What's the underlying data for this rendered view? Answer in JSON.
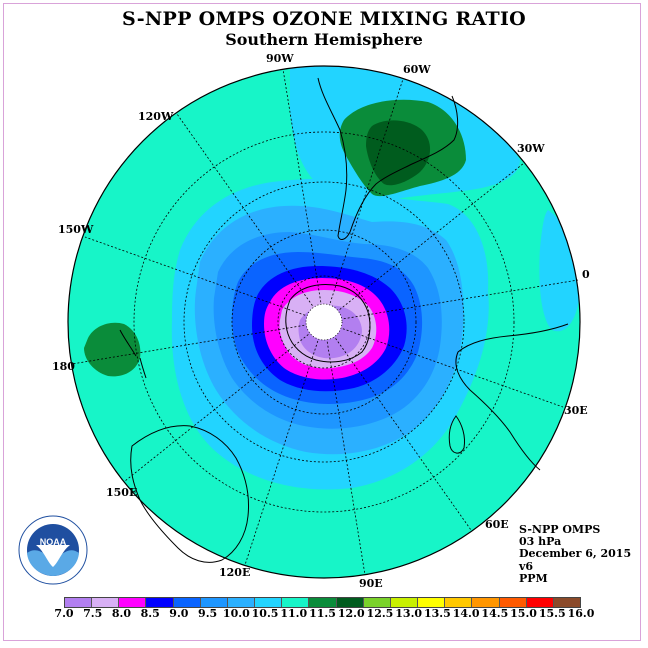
{
  "title": "S-NPP OMPS OZONE MIXING RATIO",
  "subtitle": "Southern Hemisphere",
  "longitude_labels": {
    "l90w": "90W",
    "l60w": "60W",
    "l120w": "120W",
    "l30w": "30W",
    "l150w": "150W",
    "l0": "0",
    "l180": "180",
    "l30e": "30E",
    "l150e": "150E",
    "l60e": "60E",
    "l120e": "120E",
    "l90e": "90E"
  },
  "info": {
    "instrument": "S-NPP OMPS",
    "level": "03 hPa",
    "date": "December 6, 2015",
    "version": "v6",
    "units": "PPM"
  },
  "logo_text": "NOAA",
  "colorbar": {
    "ticks": [
      "7.0",
      "7.5",
      "8.0",
      "8.5",
      "9.0",
      "9.5",
      "10.0",
      "10.5",
      "11.0",
      "11.5",
      "12.0",
      "12.5",
      "13.0",
      "13.5",
      "14.0",
      "14.5",
      "15.0",
      "15.5",
      "16.0"
    ],
    "colors": [
      "#b27ff0",
      "#d8b0f5",
      "#ff00ff",
      "#0000ff",
      "#0a64ff",
      "#1e96ff",
      "#2bb0ff",
      "#22d4ff",
      "#17f5c8",
      "#0a8c3a",
      "#005c1e",
      "#7ad22a",
      "#c8f000",
      "#ffff00",
      "#ffc800",
      "#ff9600",
      "#ff5a00",
      "#ff0000",
      "#8b4a2a"
    ]
  },
  "map_colors": {
    "ocean_background": "#17f5c8",
    "band_105": "#22d4ff",
    "band_100": "#2bb0ff",
    "band_95": "#1e96ff",
    "band_90": "#0a64ff",
    "band_85": "#0000ff",
    "band_80": "#ff00ff",
    "band_75": "#d8b0f5",
    "band_70": "#b27ff0",
    "high_115": "#0a8c3a",
    "high_120": "#005c1e"
  }
}
